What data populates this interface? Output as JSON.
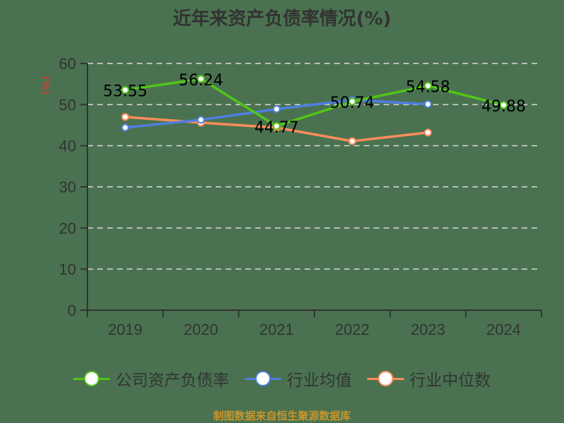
{
  "title": "近年来资产负债率情况(%)",
  "source": "制图数据来自恒生聚源数据库",
  "colors": {
    "background": "#4a7250",
    "company": "#52c41a",
    "industry_avg": "#4e7fe0",
    "industry_median": "#ff8c5a",
    "axis": "#333333",
    "grid": "#d9d9d9",
    "ylabel": "#ff2a2a",
    "source": "#c8952a"
  },
  "chart_data": {
    "type": "line",
    "title": "近年来资产负债率情况(%)",
    "xlabel": "",
    "ylabel": "(%)",
    "categories": [
      "2019",
      "2020",
      "2021",
      "2022",
      "2023",
      "2024"
    ],
    "ylim": [
      0,
      60
    ],
    "yticks": [
      0,
      10,
      20,
      30,
      40,
      50,
      60
    ],
    "grid": true,
    "grid_style": "dashed",
    "legend_position": "bottom",
    "series": [
      {
        "name": "公司资产负债率",
        "values": [
          53.55,
          56.24,
          44.77,
          50.74,
          54.58,
          49.88
        ],
        "labeled": true
      },
      {
        "name": "行业均值",
        "values": [
          44.4,
          46.3,
          48.9,
          51.1,
          50.1,
          null
        ],
        "labeled": false
      },
      {
        "name": "行业中位数",
        "values": [
          47.0,
          45.6,
          44.4,
          41.1,
          43.2,
          null
        ],
        "labeled": false
      }
    ]
  },
  "legend": [
    {
      "label": "公司资产负债率",
      "color": "#52c41a"
    },
    {
      "label": "行业均值",
      "color": "#4e7fe0"
    },
    {
      "label": "行业中位数",
      "color": "#ff8c5a"
    }
  ]
}
